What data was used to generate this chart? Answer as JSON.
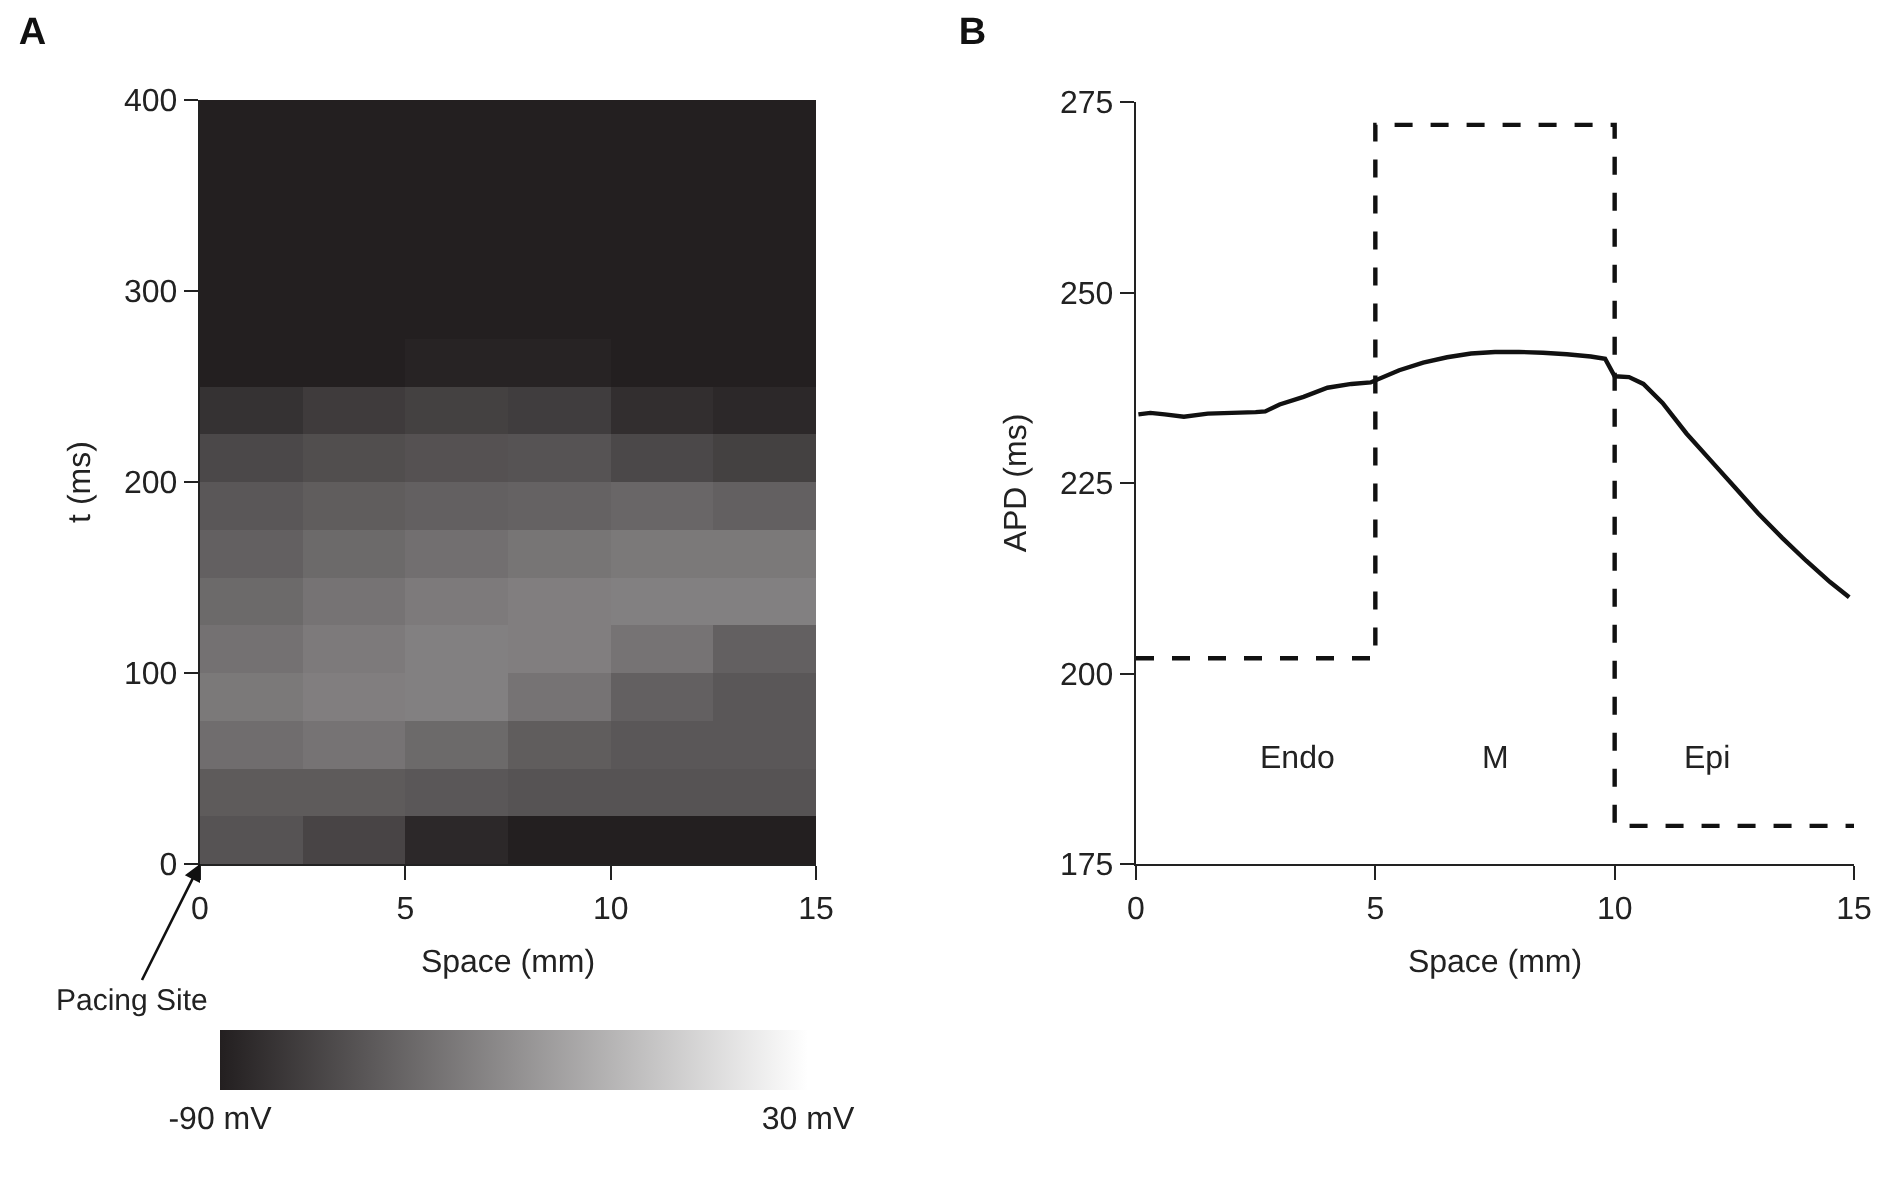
{
  "chart_data": [
    {
      "type": "heatmap",
      "title": "A",
      "xlabel": "Space (mm)",
      "ylabel": "t (ms)",
      "x": [
        1.25,
        3.75,
        6.25,
        8.75,
        11.25,
        13.75
      ],
      "cells": [
        [
          -90,
          -90,
          -90,
          -90,
          -90,
          -90
        ],
        [
          -90,
          -90,
          -90,
          -90,
          -90,
          -90
        ],
        [
          -90,
          -90,
          -90,
          -90,
          -90,
          -90
        ],
        [
          -90,
          -90,
          -90,
          -90,
          -90,
          -90
        ],
        [
          -90,
          -90,
          -90,
          -90,
          -90,
          -90
        ],
        [
          -90,
          -90,
          -88,
          -88,
          -90,
          -90
        ],
        [
          -80,
          -75,
          -72,
          -74,
          -82,
          -85
        ],
        [
          -68,
          -65,
          -63,
          -62,
          -68,
          -72
        ],
        [
          -60,
          -57,
          -55,
          -54,
          -52,
          -55
        ],
        [
          -55,
          -50,
          -47,
          -44,
          -42,
          -42
        ],
        [
          -50,
          -45,
          -41,
          -39,
          -38,
          -38
        ],
        [
          -46,
          -41,
          -38,
          -39,
          -45,
          -55
        ],
        [
          -42,
          -39,
          -38,
          -45,
          -55,
          -60
        ],
        [
          -48,
          -45,
          -50,
          -57,
          -60,
          -60
        ],
        [
          -58,
          -58,
          -60,
          -62,
          -62,
          -62
        ],
        [
          -62,
          -70,
          -85,
          -90,
          -90,
          -90
        ]
      ],
      "xlim": [
        0,
        15
      ],
      "ylim": [
        0,
        400
      ],
      "xticks": [
        0,
        5,
        10,
        15
      ],
      "yticks": [
        0,
        100,
        200,
        300,
        400
      ],
      "clim": [
        -90,
        30
      ],
      "cticks": [
        {
          "value": -90,
          "label": "-90 mV"
        },
        {
          "value": 30,
          "label": "30 mV"
        }
      ],
      "annotations": [
        "Pacing Site"
      ]
    },
    {
      "type": "line",
      "title": "B",
      "xlabel": "Space (mm)",
      "ylabel": "APD (ms)",
      "xlim": [
        0,
        15
      ],
      "ylim": [
        175,
        275
      ],
      "xticks": [
        0,
        5,
        10,
        15
      ],
      "yticks": [
        175,
        200,
        225,
        250,
        275
      ],
      "grid": false,
      "series": [
        {
          "type": "line",
          "color": "#111111",
          "line_style": "solid",
          "x": [
            0.05,
            0.3,
            0.6,
            1,
            1.5,
            2,
            2.5,
            2.7,
            3,
            3.5,
            4,
            4.5,
            4.9,
            5.5,
            6,
            6.5,
            7,
            7.5,
            8,
            8.5,
            9,
            9.5,
            9.8,
            10,
            10.3,
            10.6,
            11,
            11.5,
            12,
            12.5,
            13,
            13.5,
            14,
            14.5,
            14.9
          ],
          "values": [
            234,
            234.2,
            234,
            233.7,
            234.1,
            234.2,
            234.3,
            234.4,
            235.3,
            236.3,
            237.5,
            238,
            238.2,
            239.8,
            240.8,
            241.5,
            242,
            242.2,
            242.2,
            242.1,
            241.9,
            241.6,
            241.3,
            239,
            238.9,
            238,
            235.5,
            231.5,
            228,
            224.5,
            221,
            217.8,
            214.8,
            212,
            210
          ]
        },
        {
          "type": "step",
          "color": "#111111",
          "line_style": "dashed",
          "x": [
            0,
            5,
            10,
            15
          ],
          "values": [
            202,
            272,
            180,
            180
          ]
        }
      ],
      "annotations": [
        "Endo",
        "M",
        "Epi"
      ]
    }
  ]
}
